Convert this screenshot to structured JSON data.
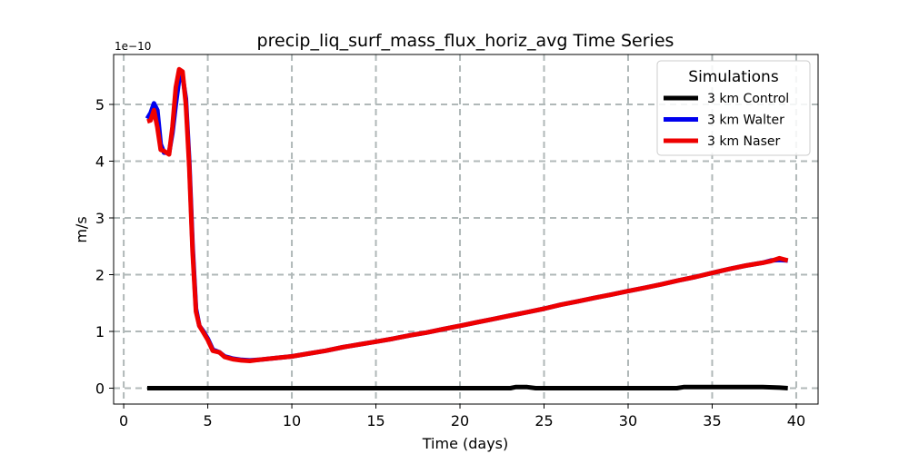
{
  "chart_data": {
    "type": "line",
    "title": "precip_liq_surf_mass_flux_horiz_avg Time Series",
    "xlabel": "Time (days)",
    "ylabel": "m/s",
    "y_scale_label": "1e−10",
    "xlim": [
      -0.6,
      41.3
    ],
    "ylim": [
      -0.28,
      5.88
    ],
    "x_ticks": [
      0,
      5,
      10,
      15,
      20,
      25,
      30,
      35,
      40
    ],
    "y_ticks": [
      0,
      1,
      2,
      3,
      4,
      5
    ],
    "grid": true,
    "legend": {
      "title": "Simulations",
      "position": "top-right"
    },
    "series": [
      {
        "name": "3 km Control",
        "color": "#000000",
        "x": [
          1.4,
          5,
          10,
          15,
          20,
          23,
          23.3,
          24,
          24.5,
          30,
          32.9,
          33.3,
          35,
          38,
          39,
          39.5
        ],
        "y": [
          0,
          0,
          0,
          0,
          0,
          0,
          0.02,
          0.02,
          0,
          0,
          0,
          0.02,
          0.02,
          0.02,
          0.01,
          0
        ]
      },
      {
        "name": "3 km Walter",
        "color": "#0000ee",
        "x": [
          1.4,
          1.6,
          1.8,
          2.0,
          2.2,
          2.4,
          2.7,
          2.9,
          3.1,
          3.3,
          3.5,
          3.7,
          3.9,
          4.1,
          4.3,
          4.5,
          4.7,
          5.0,
          5.3,
          5.7,
          6.0,
          6.5,
          7.0,
          7.5,
          8.0,
          9.0,
          10,
          11,
          12,
          13,
          14,
          15,
          16,
          17,
          18,
          19,
          20,
          21,
          22,
          23,
          24,
          25,
          26,
          27,
          28,
          29,
          30,
          31,
          32,
          33,
          34,
          35,
          36,
          37,
          38,
          38.5,
          39,
          39.5
        ],
        "y": [
          4.75,
          4.85,
          5.02,
          4.9,
          4.3,
          4.15,
          4.15,
          4.5,
          5.0,
          5.45,
          5.5,
          5.1,
          4.0,
          2.5,
          1.4,
          1.1,
          1.02,
          0.87,
          0.68,
          0.63,
          0.56,
          0.52,
          0.5,
          0.49,
          0.5,
          0.53,
          0.56,
          0.61,
          0.66,
          0.72,
          0.77,
          0.82,
          0.87,
          0.93,
          0.98,
          1.04,
          1.1,
          1.16,
          1.22,
          1.28,
          1.34,
          1.4,
          1.47,
          1.53,
          1.59,
          1.65,
          1.71,
          1.77,
          1.83,
          1.9,
          1.96,
          2.03,
          2.1,
          2.16,
          2.21,
          2.25,
          2.26,
          2.25
        ]
      },
      {
        "name": "3 km Naser",
        "color": "#ee0000",
        "x": [
          1.4,
          1.6,
          1.8,
          2.0,
          2.2,
          2.4,
          2.7,
          2.9,
          3.1,
          3.3,
          3.5,
          3.7,
          3.9,
          4.1,
          4.3,
          4.5,
          4.7,
          5.0,
          5.3,
          5.7,
          6.0,
          6.5,
          7.0,
          7.5,
          8.0,
          9.0,
          10,
          11,
          12,
          13,
          14,
          15,
          16,
          17,
          18,
          19,
          20,
          21,
          22,
          23,
          24,
          25,
          26,
          27,
          28,
          29,
          30,
          31,
          32,
          33,
          34,
          35,
          36,
          37,
          38,
          38.5,
          39,
          39.5
        ],
        "y": [
          4.7,
          4.72,
          4.9,
          4.6,
          4.2,
          4.18,
          4.12,
          4.6,
          5.3,
          5.62,
          5.58,
          5.0,
          3.9,
          2.4,
          1.35,
          1.1,
          1.0,
          0.85,
          0.66,
          0.63,
          0.55,
          0.51,
          0.49,
          0.48,
          0.5,
          0.53,
          0.56,
          0.61,
          0.66,
          0.72,
          0.77,
          0.82,
          0.87,
          0.93,
          0.98,
          1.04,
          1.1,
          1.16,
          1.22,
          1.28,
          1.34,
          1.4,
          1.47,
          1.53,
          1.59,
          1.65,
          1.71,
          1.77,
          1.83,
          1.9,
          1.96,
          2.03,
          2.1,
          2.16,
          2.21,
          2.24,
          2.29,
          2.25
        ]
      }
    ]
  }
}
